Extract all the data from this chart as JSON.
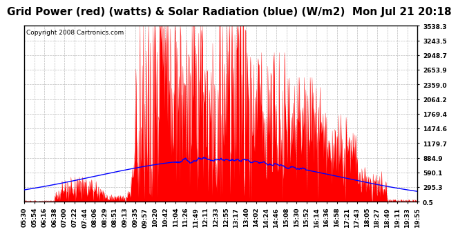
{
  "title": "Grid Power (red) (watts) & Solar Radiation (blue) (W/m2)  Mon Jul 21 20:18",
  "copyright": "Copyright 2008 Cartronics.com",
  "yticks": [
    0.5,
    295.3,
    590.1,
    884.9,
    1179.7,
    1474.6,
    1769.4,
    2064.2,
    2359.0,
    2653.9,
    2948.7,
    3243.5,
    3538.3
  ],
  "ylim": [
    0.5,
    3538.3
  ],
  "xtick_labels": [
    "05:30",
    "05:54",
    "06:16",
    "06:38",
    "07:00",
    "07:22",
    "07:44",
    "08:06",
    "08:29",
    "08:51",
    "09:13",
    "09:35",
    "09:57",
    "10:20",
    "10:42",
    "11:04",
    "11:26",
    "11:49",
    "12:11",
    "12:33",
    "12:55",
    "13:17",
    "13:40",
    "14:02",
    "14:24",
    "14:46",
    "15:08",
    "15:30",
    "15:52",
    "16:14",
    "16:36",
    "16:58",
    "17:21",
    "17:43",
    "18:05",
    "18:27",
    "18:49",
    "19:11",
    "19:33",
    "19:55"
  ],
  "background_color": "#ffffff",
  "plot_bg_color": "#ffffff",
  "grid_color": "#bbbbbb",
  "red_color": "#ff0000",
  "blue_color": "#0000ff",
  "title_fontsize": 11,
  "tick_fontsize": 6.5,
  "copyright_fontsize": 6.5
}
